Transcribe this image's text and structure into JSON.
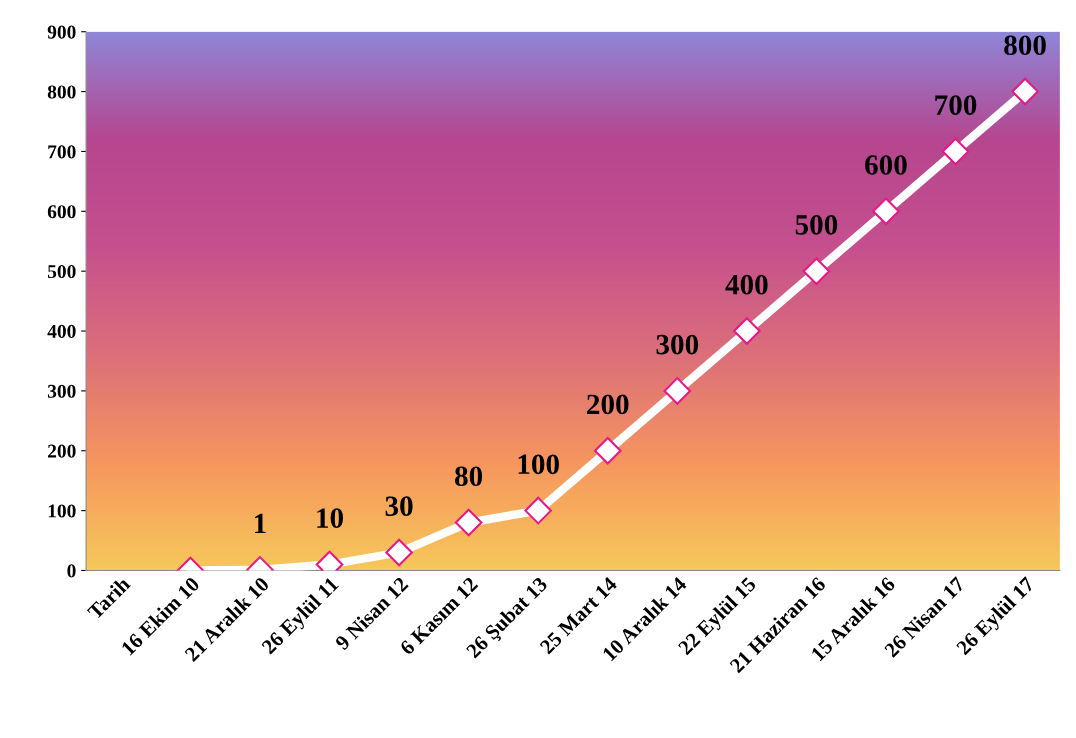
{
  "chart_data": {
    "type": "line",
    "categories": [
      "Tarih",
      "16 Ekim 10",
      "21 Aralık 10",
      "26 Eylül 11",
      "9 Nisan 12",
      "6 Kasım 12",
      "26 Şubat 13",
      "25 Mart 14",
      "10 Aralık 14",
      "22 Eylül 15",
      "21 Haziran 16",
      "15 Aralık 16",
      "26 Nisan 17",
      "26 Eylül 17"
    ],
    "series": [
      {
        "color": "#ffffff",
        "values": [
          null,
          0,
          1,
          10,
          30,
          80,
          100,
          200,
          300,
          400,
          500,
          600,
          700,
          800
        ],
        "value_labels": [
          null,
          null,
          "1",
          "10",
          "30",
          "80",
          "100",
          "200",
          "300",
          "400",
          "500",
          "600",
          "700",
          "800"
        ]
      }
    ],
    "ylim": [
      0,
      900
    ],
    "yticks": [
      0,
      100,
      200,
      300,
      400,
      500,
      600,
      700,
      800,
      900
    ],
    "grid": false,
    "legend": false,
    "marker": "diamond",
    "line_style": "solid"
  }
}
